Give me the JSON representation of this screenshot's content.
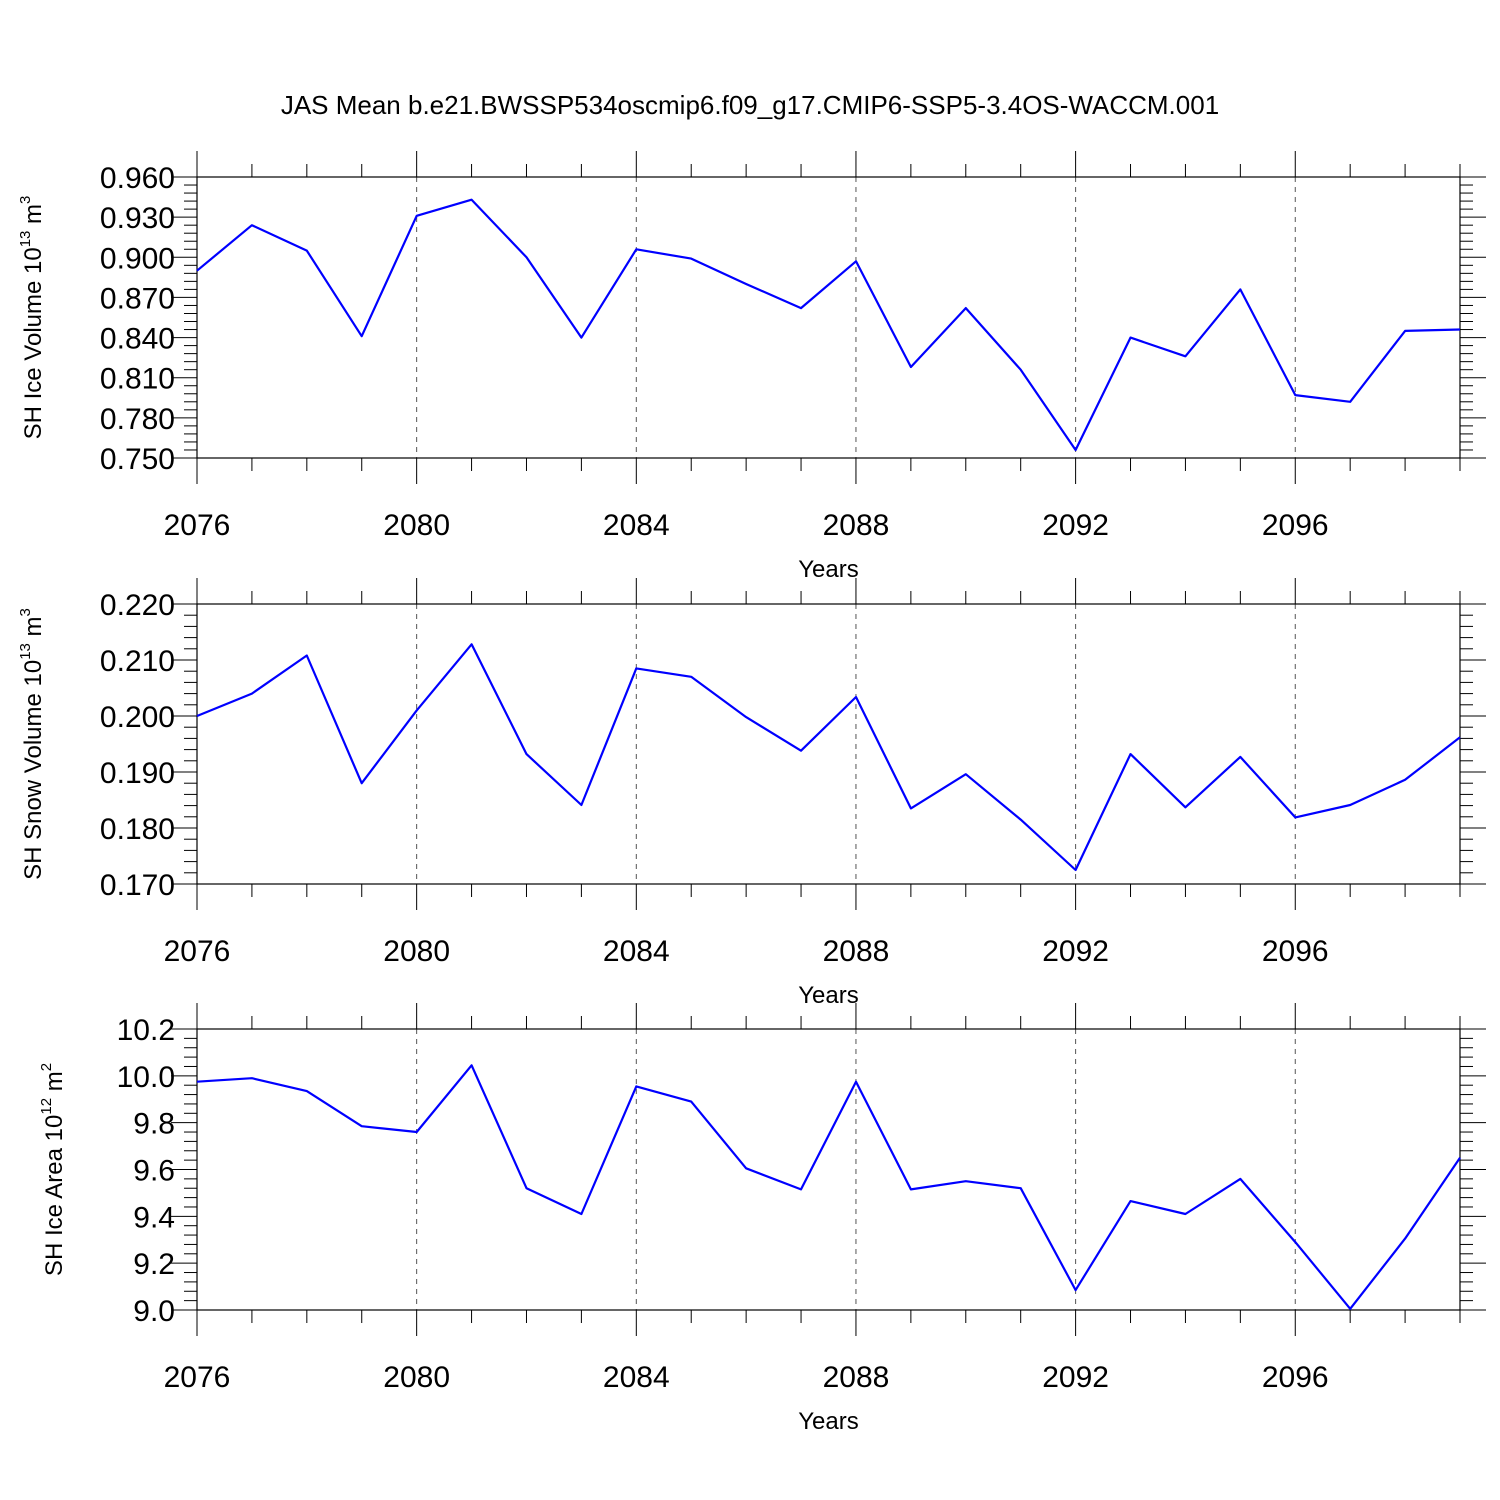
{
  "figure": {
    "title": "JAS Mean b.e21.BWSSP534oscmip6.f09_g17.CMIP6-SSP5-3.4OS-WACCM.001"
  },
  "chart_data": [
    {
      "type": "line",
      "xlabel": "Years",
      "ylabel": "SH Ice Volume 10",
      "ylabel_exp": "13",
      "ylabel_unit": " m",
      "ylabel_unit_exp": "3",
      "xlim": [
        2076,
        2099
      ],
      "ylim": [
        0.75,
        0.96
      ],
      "xticks": [
        2076,
        2080,
        2084,
        2088,
        2092,
        2096
      ],
      "yticks": [
        "0.960",
        "0.930",
        "0.900",
        "0.870",
        "0.840",
        "0.810",
        "0.780",
        "0.750"
      ],
      "ytick_values": [
        0.96,
        0.93,
        0.9,
        0.87,
        0.84,
        0.81,
        0.78,
        0.75
      ],
      "grid": "vertical dashed at major x ticks",
      "color": "#0000ff",
      "x": [
        2076,
        2077,
        2078,
        2079,
        2080,
        2081,
        2082,
        2083,
        2084,
        2085,
        2086,
        2087,
        2088,
        2089,
        2090,
        2091,
        2092,
        2093,
        2094,
        2095,
        2096,
        2097,
        2098,
        2099
      ],
      "y": [
        0.89,
        0.924,
        0.905,
        0.841,
        0.931,
        0.943,
        0.9,
        0.84,
        0.906,
        0.899,
        0.88,
        0.862,
        0.897,
        0.818,
        0.862,
        0.816,
        0.756,
        0.84,
        0.826,
        0.876,
        0.797,
        0.792,
        0.845,
        0.846
      ]
    },
    {
      "type": "line",
      "xlabel": "Years",
      "ylabel": "SH Snow Volume 10",
      "ylabel_exp": "13",
      "ylabel_unit": " m",
      "ylabel_unit_exp": "3",
      "xlim": [
        2076,
        2099
      ],
      "ylim": [
        0.17,
        0.22
      ],
      "xticks": [
        2076,
        2080,
        2084,
        2088,
        2092,
        2096
      ],
      "yticks": [
        "0.220",
        "0.210",
        "0.200",
        "0.190",
        "0.180",
        "0.170"
      ],
      "ytick_values": [
        0.22,
        0.21,
        0.2,
        0.19,
        0.18,
        0.17
      ],
      "grid": "vertical dashed at major x ticks",
      "color": "#0000ff",
      "x": [
        2076,
        2077,
        2078,
        2079,
        2080,
        2081,
        2082,
        2083,
        2084,
        2085,
        2086,
        2087,
        2088,
        2089,
        2090,
        2091,
        2092,
        2093,
        2094,
        2095,
        2096,
        2097,
        2098,
        2099
      ],
      "y": [
        0.2,
        0.204,
        0.2108,
        0.188,
        0.201,
        0.2128,
        0.1932,
        0.1841,
        0.2085,
        0.207,
        0.1998,
        0.1938,
        0.2034,
        0.1835,
        0.1896,
        0.1815,
        0.1725,
        0.1932,
        0.1837,
        0.1927,
        0.1819,
        0.1841,
        0.1886,
        0.1962
      ]
    },
    {
      "type": "line",
      "xlabel": "Years",
      "ylabel": "SH Ice Area 10",
      "ylabel_exp": "12",
      "ylabel_unit": " m",
      "ylabel_unit_exp": "2",
      "xlim": [
        2076,
        2099
      ],
      "ylim": [
        9.0,
        10.2
      ],
      "xticks": [
        2076,
        2080,
        2084,
        2088,
        2092,
        2096
      ],
      "yticks": [
        "10.2",
        "10.0",
        "9.8",
        "9.6",
        "9.4",
        "9.2",
        "9.0"
      ],
      "ytick_values": [
        10.2,
        10.0,
        9.8,
        9.6,
        9.4,
        9.2,
        9.0
      ],
      "grid": "vertical dashed at major x ticks",
      "color": "#0000ff",
      "x": [
        2076,
        2077,
        2078,
        2079,
        2080,
        2081,
        2082,
        2083,
        2084,
        2085,
        2086,
        2087,
        2088,
        2089,
        2090,
        2091,
        2092,
        2093,
        2094,
        2095,
        2096,
        2097,
        2098,
        2099
      ],
      "y": [
        9.975,
        9.99,
        9.935,
        9.785,
        9.76,
        10.045,
        9.52,
        9.41,
        9.955,
        9.89,
        9.605,
        9.515,
        9.975,
        9.515,
        9.55,
        9.52,
        9.085,
        9.465,
        9.41,
        9.56,
        9.29,
        9.005,
        9.305,
        9.65
      ]
    }
  ]
}
